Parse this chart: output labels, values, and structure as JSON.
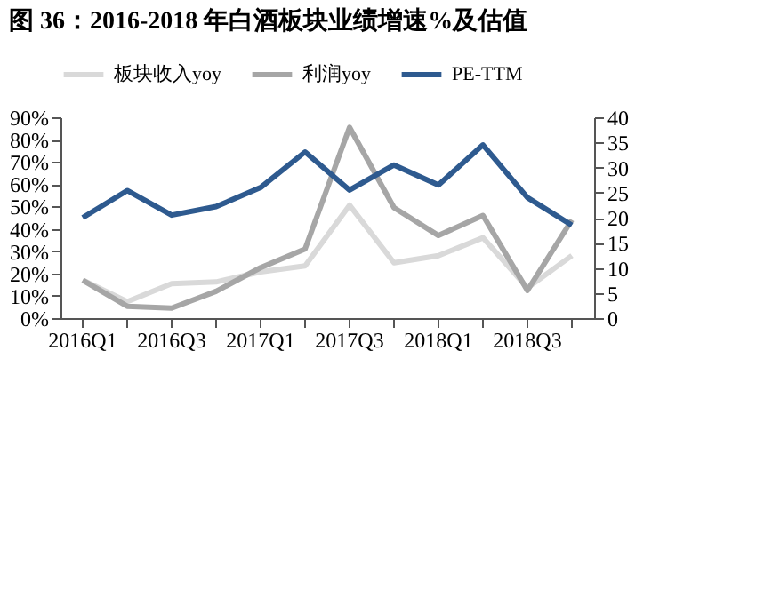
{
  "chart_data": {
    "type": "line",
    "title": "图 36：2016-2018 年白酒板块业绩增速%及估值",
    "categories": [
      "2016Q1",
      null,
      "2016Q3",
      null,
      "2017Q1",
      null,
      "2017Q3",
      null,
      "2018Q1",
      null,
      "2018Q3",
      null
    ],
    "series": [
      {
        "name": "板块收入yoy",
        "color": "#d9d9d9",
        "values": [
          17,
          7.4,
          15.4,
          16.2,
          20.7,
          23.4,
          50.6,
          24.8,
          28,
          36,
          13.5,
          28
        ]
      },
      {
        "name": "利润yoy",
        "color": "#a6a6a6",
        "values": [
          17,
          5.3,
          4.5,
          12,
          22.6,
          31,
          85.5,
          49.5,
          37,
          46,
          12.4,
          44
        ]
      },
      {
        "name": "PE-TTM",
        "color": "#2e5a8f",
        "axis": "y2",
        "values": [
          20,
          25.4,
          20.5,
          22.2,
          26,
          33.1,
          25.5,
          30.5,
          26.5,
          34.5,
          24,
          18.5
        ]
      }
    ],
    "ylim": [
      0,
      90
    ],
    "yticks": [
      {
        "value": 0,
        "label": "0%"
      },
      {
        "value": 10,
        "label": "10%"
      },
      {
        "value": 20,
        "label": "20%"
      },
      {
        "value": 30,
        "label": "30%"
      },
      {
        "value": 40,
        "label": "40%"
      },
      {
        "value": 50,
        "label": "50%"
      },
      {
        "value": 60,
        "label": "60%"
      },
      {
        "value": 70,
        "label": "70%"
      },
      {
        "value": 80,
        "label": "80%"
      },
      {
        "value": 90,
        "label": "90%"
      }
    ],
    "y2lim": [
      0,
      40
    ],
    "y2ticks": [
      0,
      5,
      10,
      15,
      20,
      25,
      30,
      35,
      40
    ],
    "legend": "top",
    "grid": false,
    "marker": "none",
    "line_style": "solid"
  }
}
